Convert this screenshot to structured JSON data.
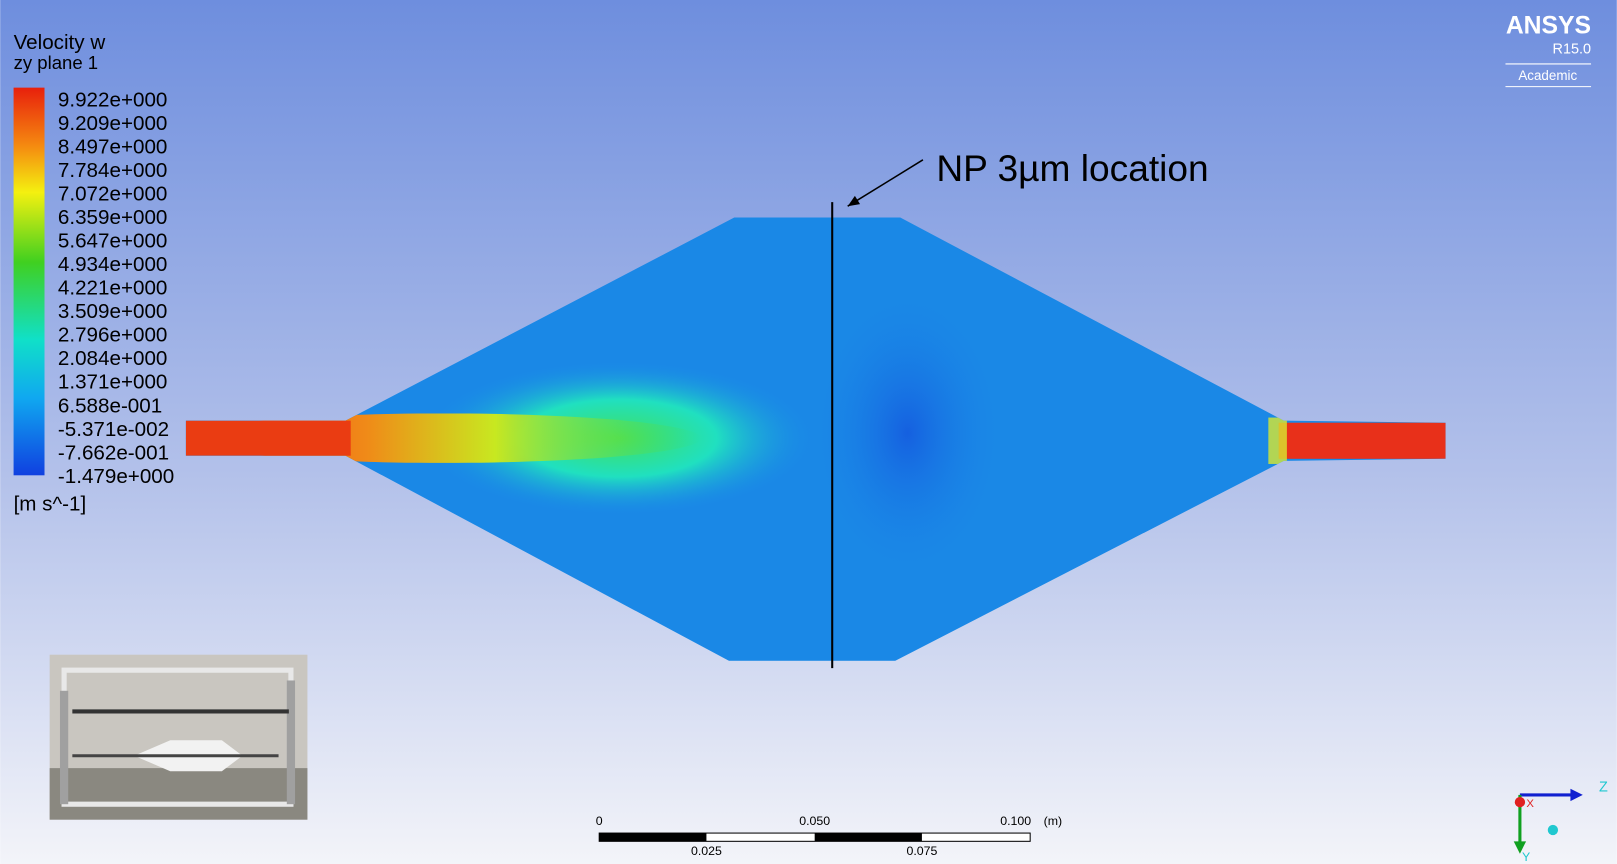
{
  "legend": {
    "title": "Velocity w",
    "subtitle": "zy plane 1",
    "labels": [
      "9.922e+000",
      "9.209e+000",
      "8.497e+000",
      "7.784e+000",
      "7.072e+000",
      "6.359e+000",
      "5.647e+000",
      "4.934e+000",
      "4.221e+000",
      "3.509e+000",
      "2.796e+000",
      "2.084e+000",
      "1.371e+000",
      "6.588e-001",
      "-5.371e-002",
      "-7.662e-001",
      "-1.479e+000"
    ],
    "unit": "[m s^-1]"
  },
  "annotation": "NP 3µm location",
  "logo": {
    "name": "ANSYS",
    "version": "R15.0",
    "edition": "Academic"
  },
  "scale_bar": {
    "top_labels": [
      "0",
      "0.050",
      "0.100"
    ],
    "unit": "(m)",
    "bottom_labels": [
      "0.025",
      "0.075"
    ]
  },
  "triad": {
    "z": "Z",
    "x": "X",
    "y": "Y"
  }
}
